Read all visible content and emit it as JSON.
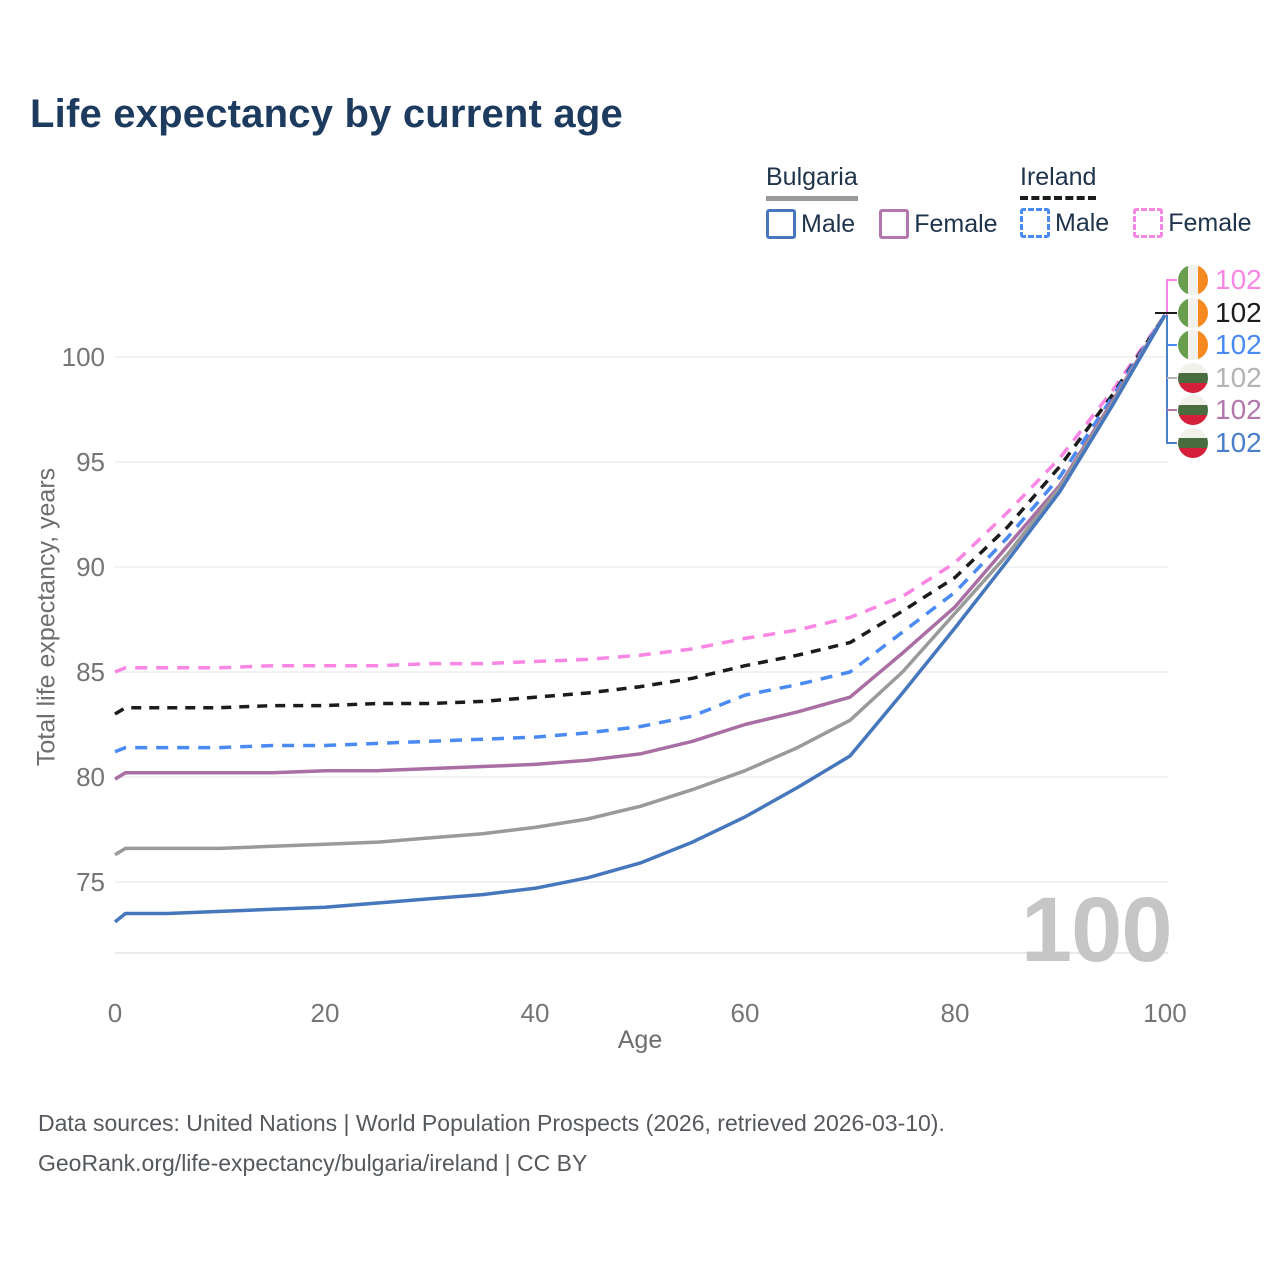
{
  "title": "Life expectancy by current age",
  "watermark": "100",
  "legend": {
    "groups": [
      {
        "label": "Bulgaria",
        "line_style": "solid",
        "color": "#9a9a9a",
        "items": [
          {
            "label": "Male",
            "color": "#4677bd",
            "dashed": false
          },
          {
            "label": "Female",
            "color": "#b277ae",
            "dashed": false
          }
        ]
      },
      {
        "label": "Ireland",
        "line_style": "dashed",
        "color": "#1c1c1c",
        "items": [
          {
            "label": "Male",
            "color": "#4a8af4",
            "dashed": true
          },
          {
            "label": "Female",
            "color": "#fa86e4",
            "dashed": true
          }
        ]
      }
    ]
  },
  "axes": {
    "x": {
      "title": "Age",
      "ticks": [
        "0",
        "20",
        "40",
        "60",
        "80",
        "100"
      ]
    },
    "y": {
      "title": "Total life expectancy, years",
      "ticks": [
        "75",
        "80",
        "85",
        "90",
        "95",
        "100"
      ]
    }
  },
  "end_labels": [
    {
      "country": "Ireland",
      "series": "Female",
      "value": "102",
      "color": "#fa86e4",
      "flag": "ireland"
    },
    {
      "country": "Ireland",
      "series": "Both",
      "value": "102",
      "color": "#1c1c1c",
      "flag": "ireland"
    },
    {
      "country": "Ireland",
      "series": "Male",
      "value": "102",
      "color": "#4a8af4",
      "flag": "ireland"
    },
    {
      "country": "Bulgaria",
      "series": "Both",
      "value": "102",
      "color": "#b3b3b3",
      "flag": "bulgaria"
    },
    {
      "country": "Bulgaria",
      "series": "Female",
      "value": "102",
      "color": "#b277ad",
      "flag": "bulgaria"
    },
    {
      "country": "Bulgaria",
      "series": "Male",
      "value": "102",
      "color": "#4a7fcb",
      "flag": "bulgaria"
    }
  ],
  "footer": {
    "line1": "Data sources: United Nations | World Population Prospects (2026, retrieved 2026-03-10).",
    "line2": "GeoRank.org/life-expectancy/bulgaria/ireland | CC BY"
  },
  "chart_data": {
    "type": "line",
    "title": "Life expectancy by current age",
    "xlabel": "Age",
    "ylabel": "Total life expectancy, years",
    "xlim": [
      0,
      100
    ],
    "ylim": [
      71.6,
      103.4
    ],
    "grid": "horizontal",
    "x": [
      0,
      1,
      5,
      10,
      15,
      20,
      25,
      30,
      35,
      40,
      45,
      50,
      55,
      60,
      65,
      70,
      75,
      80,
      85,
      90,
      95,
      100
    ],
    "series": [
      {
        "name": "Ireland Female",
        "country": "Ireland",
        "sex": "female",
        "color": "#fa86e4",
        "dash": "12 9",
        "values": [
          85.0,
          85.2,
          85.2,
          85.2,
          85.3,
          85.3,
          85.3,
          85.4,
          85.4,
          85.5,
          85.6,
          85.8,
          86.1,
          86.6,
          87.0,
          87.6,
          88.6,
          90.2,
          92.6,
          95.2,
          98.4,
          102
        ]
      },
      {
        "name": "Ireland Both sexes",
        "country": "Ireland",
        "sex": "both",
        "color": "#1c1c1c",
        "dash": "10 8",
        "values": [
          83.0,
          83.3,
          83.3,
          83.3,
          83.4,
          83.4,
          83.5,
          83.5,
          83.6,
          83.8,
          84.0,
          84.3,
          84.7,
          85.3,
          85.8,
          86.4,
          87.9,
          89.5,
          91.9,
          94.8,
          98.2,
          102
        ]
      },
      {
        "name": "Ireland Male",
        "country": "Ireland",
        "sex": "male",
        "color": "#4a8af4",
        "dash": "12 9",
        "values": [
          81.2,
          81.4,
          81.4,
          81.4,
          81.5,
          81.5,
          81.6,
          81.7,
          81.8,
          81.9,
          82.1,
          82.4,
          82.9,
          83.9,
          84.4,
          85.0,
          86.9,
          88.8,
          91.4,
          94.3,
          98.1,
          102
        ]
      },
      {
        "name": "Bulgaria Female",
        "country": "Bulgaria",
        "sex": "female",
        "color": "#a96fa5",
        "dash": "",
        "values": [
          79.9,
          80.2,
          80.2,
          80.2,
          80.2,
          80.3,
          80.3,
          80.4,
          80.5,
          80.6,
          80.8,
          81.1,
          81.7,
          82.5,
          83.1,
          83.8,
          85.9,
          88.1,
          91.0,
          93.9,
          97.9,
          102
        ]
      },
      {
        "name": "Bulgaria Both sexes",
        "country": "Bulgaria",
        "sex": "both",
        "color": "#9a9a9a",
        "dash": "",
        "values": [
          76.3,
          76.6,
          76.6,
          76.6,
          76.7,
          76.8,
          76.9,
          77.1,
          77.3,
          77.6,
          78.0,
          78.6,
          79.4,
          80.3,
          81.4,
          82.7,
          85.0,
          87.8,
          90.6,
          93.8,
          97.8,
          102
        ]
      },
      {
        "name": "Bulgaria Male",
        "country": "Bulgaria",
        "sex": "male",
        "color": "#4677bd",
        "dash": "",
        "values": [
          73.1,
          73.5,
          73.5,
          73.6,
          73.7,
          73.8,
          74.0,
          74.2,
          74.4,
          74.7,
          75.2,
          75.9,
          76.9,
          78.1,
          79.5,
          81.0,
          84.0,
          87.1,
          90.3,
          93.6,
          97.7,
          102
        ]
      }
    ],
    "end_value_label": "102",
    "legend_position": "top-right",
    "watermark": "100"
  }
}
